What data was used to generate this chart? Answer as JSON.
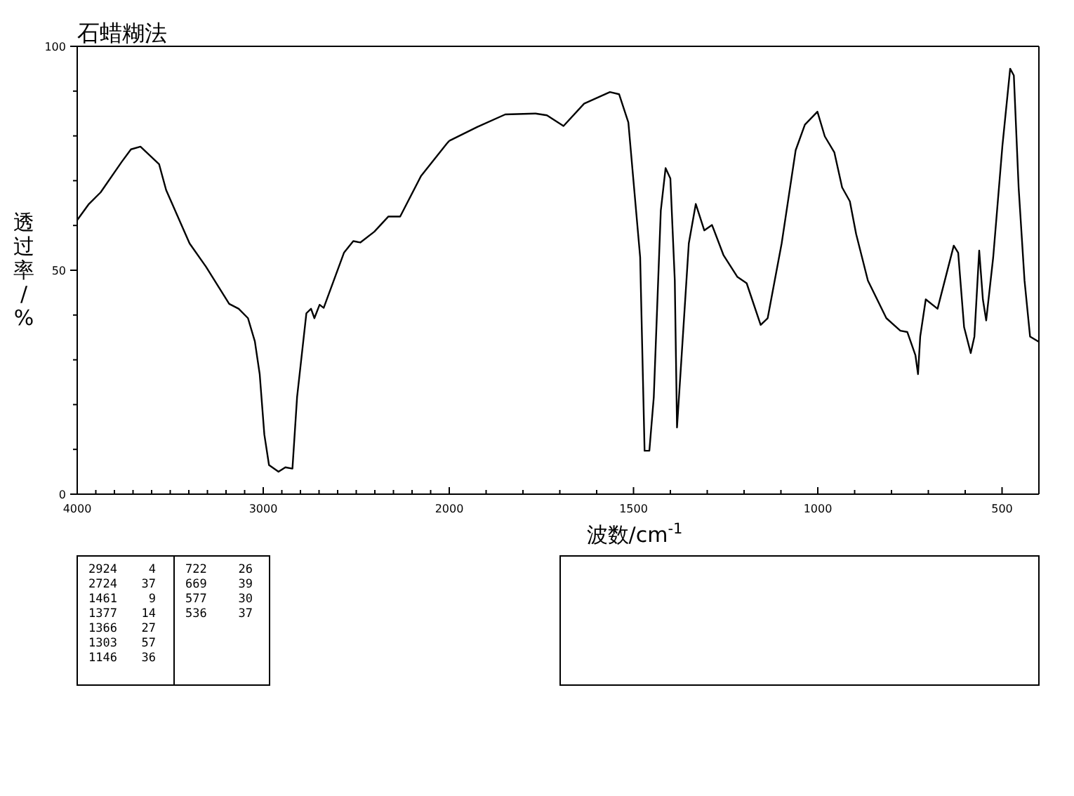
{
  "chart_data": [
    {
      "type": "line",
      "title": "石蜡糊法",
      "ylabel": "透过率/%",
      "xlim": [
        4000,
        2000
      ],
      "ylim": [
        0,
        100
      ],
      "xticks": [
        4000,
        {
          "value": 3900,
          "label": null
        },
        {
          "value": 3800,
          "label": null
        },
        {
          "value": 3700,
          "label": null
        },
        {
          "value": 3600,
          "label": null
        },
        {
          "value": 3500,
          "label": null
        },
        {
          "value": 3400,
          "label": null
        },
        {
          "value": 3300,
          "label": null
        },
        {
          "value": 3200,
          "label": null
        },
        {
          "value": 3100,
          "label": null
        },
        3000,
        {
          "value": 2900,
          "label": null
        },
        {
          "value": 2800,
          "label": null
        },
        {
          "value": 2700,
          "label": null
        },
        {
          "value": 2600,
          "label": null
        },
        {
          "value": 2500,
          "label": null
        },
        {
          "value": 2400,
          "label": null
        },
        {
          "value": 2300,
          "label": null
        },
        {
          "value": 2200,
          "label": null
        },
        {
          "value": 2100,
          "label": null
        }
      ],
      "yticks": [
        0,
        {
          "value": 10,
          "label": null
        },
        {
          "value": 20,
          "label": null
        },
        {
          "value": 30,
          "label": null
        },
        {
          "value": 40,
          "label": null
        },
        50,
        {
          "value": 60,
          "label": null
        },
        {
          "value": 70,
          "label": null
        },
        {
          "value": 80,
          "label": null
        },
        {
          "value": 90,
          "label": null
        },
        100
      ],
      "x": [
        4000,
        3937,
        3874,
        3761,
        3711,
        3660,
        3560,
        3522,
        3396,
        3308,
        3183,
        3132,
        3082,
        3045,
        3019,
        2994,
        2969,
        2918,
        2881,
        2843,
        2818,
        2768,
        2743,
        2725,
        2697,
        2675,
        2566,
        2516,
        2478,
        2403,
        2327,
        2264,
        2151,
        2013,
        2000
      ],
      "series": [
        {
          "color": "#000000",
          "values": [
            61.2,
            64.8,
            67.4,
            74.2,
            77,
            77.6,
            73.7,
            67.9,
            56,
            50.8,
            42.5,
            41.4,
            39.3,
            34.1,
            26.8,
            13.3,
            6.5,
            5,
            6,
            5.7,
            21.7,
            40.4,
            41.4,
            39.3,
            42.3,
            41.6,
            53.9,
            56.5,
            56.2,
            58.6,
            62,
            62,
            71.1,
            78.3,
            78.9
          ]
        }
      ],
      "marker": "none",
      "line_style": "solid",
      "annotations": [
        "2924 4",
        "2724 37",
        "1461 9",
        "1377 14",
        "1366 27",
        "1303 57",
        "1146 36",
        "722 26",
        "669 39",
        "577 30",
        "536 37"
      ]
    },
    {
      "type": "line",
      "xlabel": "波数/cm$^{-1}$",
      "tick_labels": "x",
      "xlim": [
        2000,
        400
      ],
      "ylim": [
        0,
        100
      ],
      "xticks": [
        2000,
        {
          "value": 1900,
          "label": null
        },
        {
          "value": 1800,
          "label": null
        },
        {
          "value": 1700,
          "label": null
        },
        {
          "value": 1600,
          "label": null
        },
        1500,
        {
          "value": 1400,
          "label": null
        },
        {
          "value": 1300,
          "label": null
        },
        {
          "value": 1200,
          "label": null
        },
        {
          "value": 1100,
          "label": null
        },
        1000,
        {
          "value": 900,
          "label": null
        },
        {
          "value": 800,
          "label": null
        },
        {
          "value": 700,
          "label": null
        },
        {
          "value": 600,
          "label": null
        },
        500
      ],
      "x": [
        2000,
        1924,
        1848,
        1766,
        1735,
        1690,
        1634,
        1564,
        1539,
        1514,
        1482,
        1470,
        1457,
        1445,
        1426,
        1413,
        1400,
        1388,
        1382,
        1371,
        1350,
        1331,
        1308,
        1287,
        1256,
        1218,
        1193,
        1155,
        1136,
        1098,
        1060,
        1035,
        1001,
        981,
        955,
        934,
        913,
        896,
        864,
        814,
        776,
        757,
        735,
        728,
        722,
        707,
        675,
        631,
        619,
        603,
        585,
        575,
        562,
        552,
        543,
        524,
        499,
        478,
        468,
        455,
        439,
        424,
        400
      ],
      "series": [
        {
          "color": "#000000",
          "values": [
            78.9,
            82,
            84.8,
            85,
            84.6,
            82.2,
            87.2,
            89.8,
            89.3,
            83,
            52.9,
            9.7,
            9.7,
            21.7,
            63.3,
            72.8,
            70.5,
            47.7,
            14.9,
            28.9,
            56,
            64.8,
            58.9,
            60.1,
            53.4,
            48.5,
            47.1,
            37.8,
            39.3,
            56,
            76.8,
            82.5,
            85.4,
            79.9,
            76.3,
            68.5,
            65.4,
            58.1,
            47.7,
            39.3,
            36.5,
            36.2,
            31,
            26.8,
            35.2,
            43.5,
            41.4,
            55.5,
            53.9,
            37.3,
            31.5,
            35.2,
            54.4,
            43.5,
            38.8,
            52.9,
            77.8,
            95,
            93.5,
            68.5,
            47.7,
            35.2,
            34
          ]
        }
      ],
      "marker": "none",
      "line_style": "solid"
    }
  ]
}
